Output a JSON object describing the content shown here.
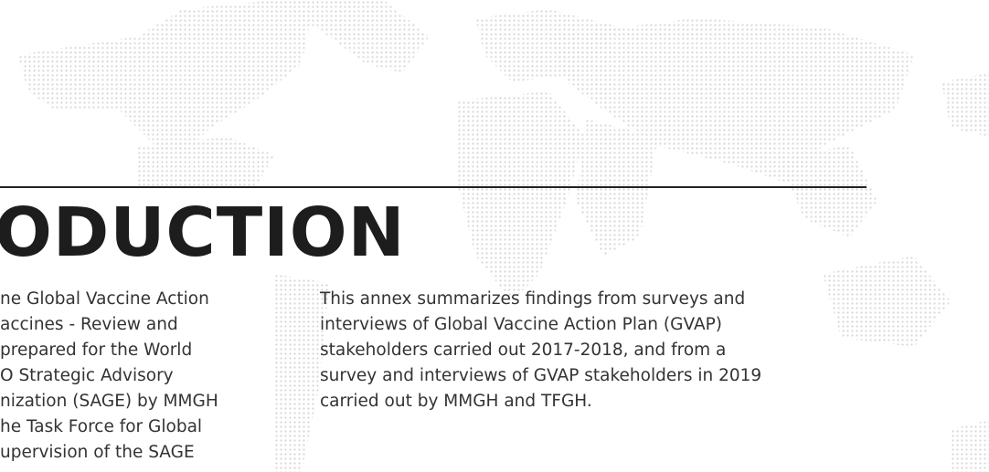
{
  "heading": "ODUCTION",
  "left_column": [
    "ne Global Vaccine Action",
    "accines - Review and",
    "prepared for the World",
    "O Strategic Advisory",
    "nization (SAGE) by MMGH",
    "he Task Force for Global",
    "upervision of the SAGE"
  ],
  "right_column": [
    "This annex summarizes findings from surveys and",
    "interviews of Global Vaccine Action Plan (GVAP)",
    "stakeholders carried out 2017-2018, and from a",
    "survey and interviews of GVAP stakeholders in 2019",
    "carried out by MMGH and TFGH."
  ]
}
